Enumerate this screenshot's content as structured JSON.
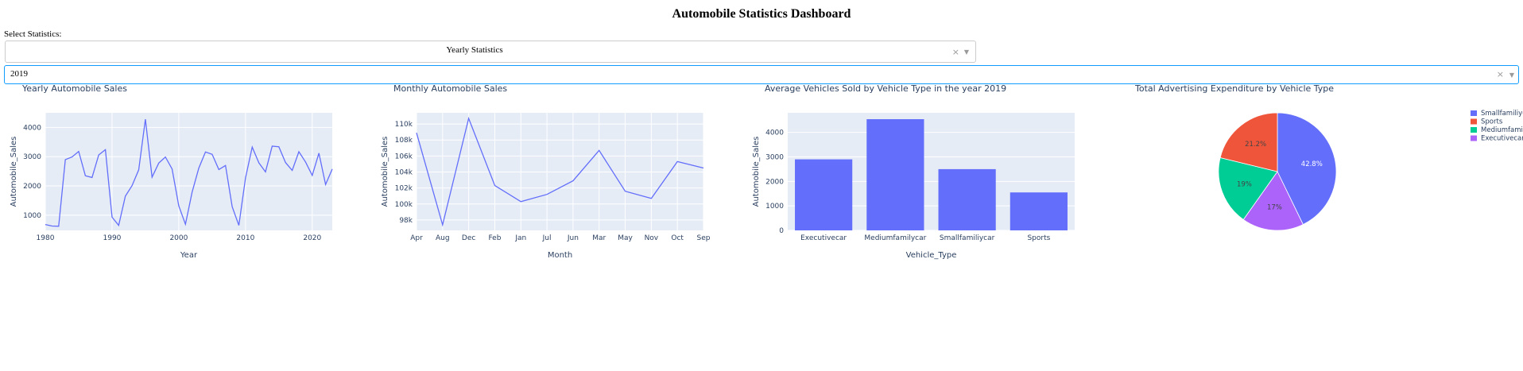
{
  "header": {
    "title": "Automobile Statistics Dashboard"
  },
  "controls": {
    "statistics_label": "Select Statistics:",
    "statistics_value": "Yearly Statistics",
    "year_value": "2019",
    "clear_glyph": "×",
    "arrow_glyph": "▼"
  },
  "chart_data": [
    {
      "type": "line",
      "title": "Yearly Automobile Sales",
      "xlabel": "Year",
      "ylabel": "Automobile_Sales",
      "x": [
        1980,
        1981,
        1982,
        1983,
        1984,
        1985,
        1986,
        1987,
        1988,
        1989,
        1990,
        1991,
        1992,
        1993,
        1994,
        1995,
        1996,
        1997,
        1998,
        1999,
        2000,
        2001,
        2002,
        2003,
        2004,
        2005,
        2006,
        2007,
        2008,
        2009,
        2010,
        2011,
        2012,
        2013,
        2014,
        2015,
        2016,
        2017,
        2018,
        2019,
        2020,
        2021,
        2022,
        2023
      ],
      "values": [
        680,
        630,
        620,
        2900,
        2990,
        3180,
        2350,
        2290,
        3060,
        3240,
        930,
        650,
        1650,
        2010,
        2550,
        4280,
        2300,
        2780,
        2990,
        2580,
        1320,
        690,
        1790,
        2610,
        3160,
        3080,
        2560,
        2700,
        1290,
        650,
        2280,
        3330,
        2790,
        2480,
        3360,
        3340,
        2800,
        2530,
        3170,
        2820,
        2360,
        3120,
        2050,
        2580
      ],
      "xlim": [
        1980,
        2023
      ],
      "ylim": [
        480,
        4500
      ],
      "xticks": [
        1980,
        1990,
        2000,
        2010,
        2020
      ],
      "xtick_labels": [
        "1980",
        "1990",
        "2000",
        "2010",
        "2020"
      ],
      "yticks": [
        1000,
        2000,
        3000,
        4000
      ],
      "ytick_labels": [
        "1000",
        "2000",
        "3000",
        "4000"
      ],
      "color": "#636efa"
    },
    {
      "type": "line",
      "title": "Monthly Automobile Sales",
      "xlabel": "Month",
      "ylabel": "Automobile_Sales",
      "categories": [
        "Apr",
        "Aug",
        "Dec",
        "Feb",
        "Jan",
        "Jul",
        "Jun",
        "Mar",
        "May",
        "Nov",
        "Oct",
        "Sep"
      ],
      "values": [
        108900,
        97400,
        110700,
        102300,
        100300,
        101200,
        102900,
        106700,
        101600,
        100700,
        105300,
        104500
      ],
      "ylim": [
        96700,
        111400
      ],
      "yticks": [
        98000,
        100000,
        102000,
        104000,
        106000,
        108000,
        110000
      ],
      "ytick_labels": [
        "98k",
        "100k",
        "102k",
        "104k",
        "106k",
        "108k",
        "110k"
      ],
      "color": "#636efa"
    },
    {
      "type": "bar",
      "title": "Average Vehicles Sold by Vehicle Type in the year 2019",
      "xlabel": "Vehicle_Type",
      "ylabel": "Automobile_Sales",
      "categories": [
        "Executivecar",
        "Mediumfamilycar",
        "Smallfamiliycar",
        "Sports"
      ],
      "values": [
        2900,
        4540,
        2500,
        1550
      ],
      "ylim": [
        0,
        4800
      ],
      "yticks": [
        0,
        1000,
        2000,
        3000,
        4000
      ],
      "ytick_labels": [
        "0",
        "1000",
        "2000",
        "3000",
        "4000"
      ],
      "color": "#636efa"
    },
    {
      "type": "pie",
      "title": "Total Advertising Expenditure by Vehicle Type",
      "labels": [
        "Smallfamiliycar",
        "Executivecar",
        "Mediumfamilycar",
        "Sports"
      ],
      "values": [
        42.8,
        17,
        19,
        21.2
      ],
      "text_labels": [
        "42.8%",
        "17%",
        "19%",
        "21.2%"
      ],
      "colors": [
        "#636efa",
        "#ab63fa",
        "#00cc96",
        "#ef553b"
      ],
      "text_colors": [
        "#ffffff",
        "#444444",
        "#444444",
        "#444444"
      ],
      "legend_order": [
        "Smallfamiliycar",
        "Sports",
        "Mediumfamilycar",
        "Executivecar"
      ],
      "legend_colors": [
        "#636efa",
        "#ef553b",
        "#00cc96",
        "#ab63fa"
      ],
      "legend": "right"
    }
  ]
}
